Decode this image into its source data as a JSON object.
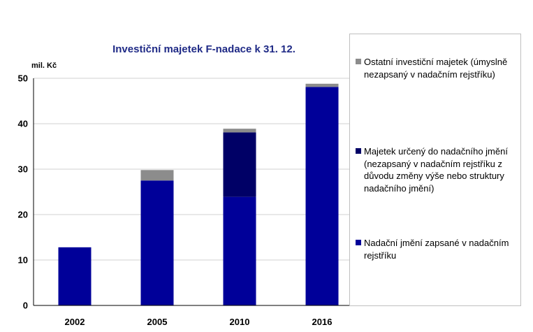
{
  "chart_data": {
    "type": "bar",
    "stacked": true,
    "title": "Investiční majetek F-nadace k 31. 12.",
    "ylabel": "mil. Kč",
    "ylim": [
      0,
      50
    ],
    "yticks": [
      0,
      10,
      20,
      30,
      40,
      50
    ],
    "grid": true,
    "legend_position": "right",
    "categories": [
      "2002",
      "2005",
      "2010",
      "2016"
    ],
    "series": [
      {
        "name": "Nadační jmění zapsané v nadačním rejstříku",
        "color": "#000099",
        "values": [
          12.8,
          27.5,
          23.9,
          48.1
        ]
      },
      {
        "name": "Majetek určený do nadačního jmění (nezapsaný v nadačním rejstříku z důvodu změny výše nebo struktury nadačního jmění)",
        "color": "#000066",
        "values": [
          0,
          0,
          14.2,
          0
        ]
      },
      {
        "name": "Ostatní investiční majetek (úmyslně nezapsaný v nadačním rejstříku)",
        "color": "#8c8c8c",
        "values": [
          0,
          2.3,
          0.8,
          0.7
        ]
      }
    ]
  }
}
